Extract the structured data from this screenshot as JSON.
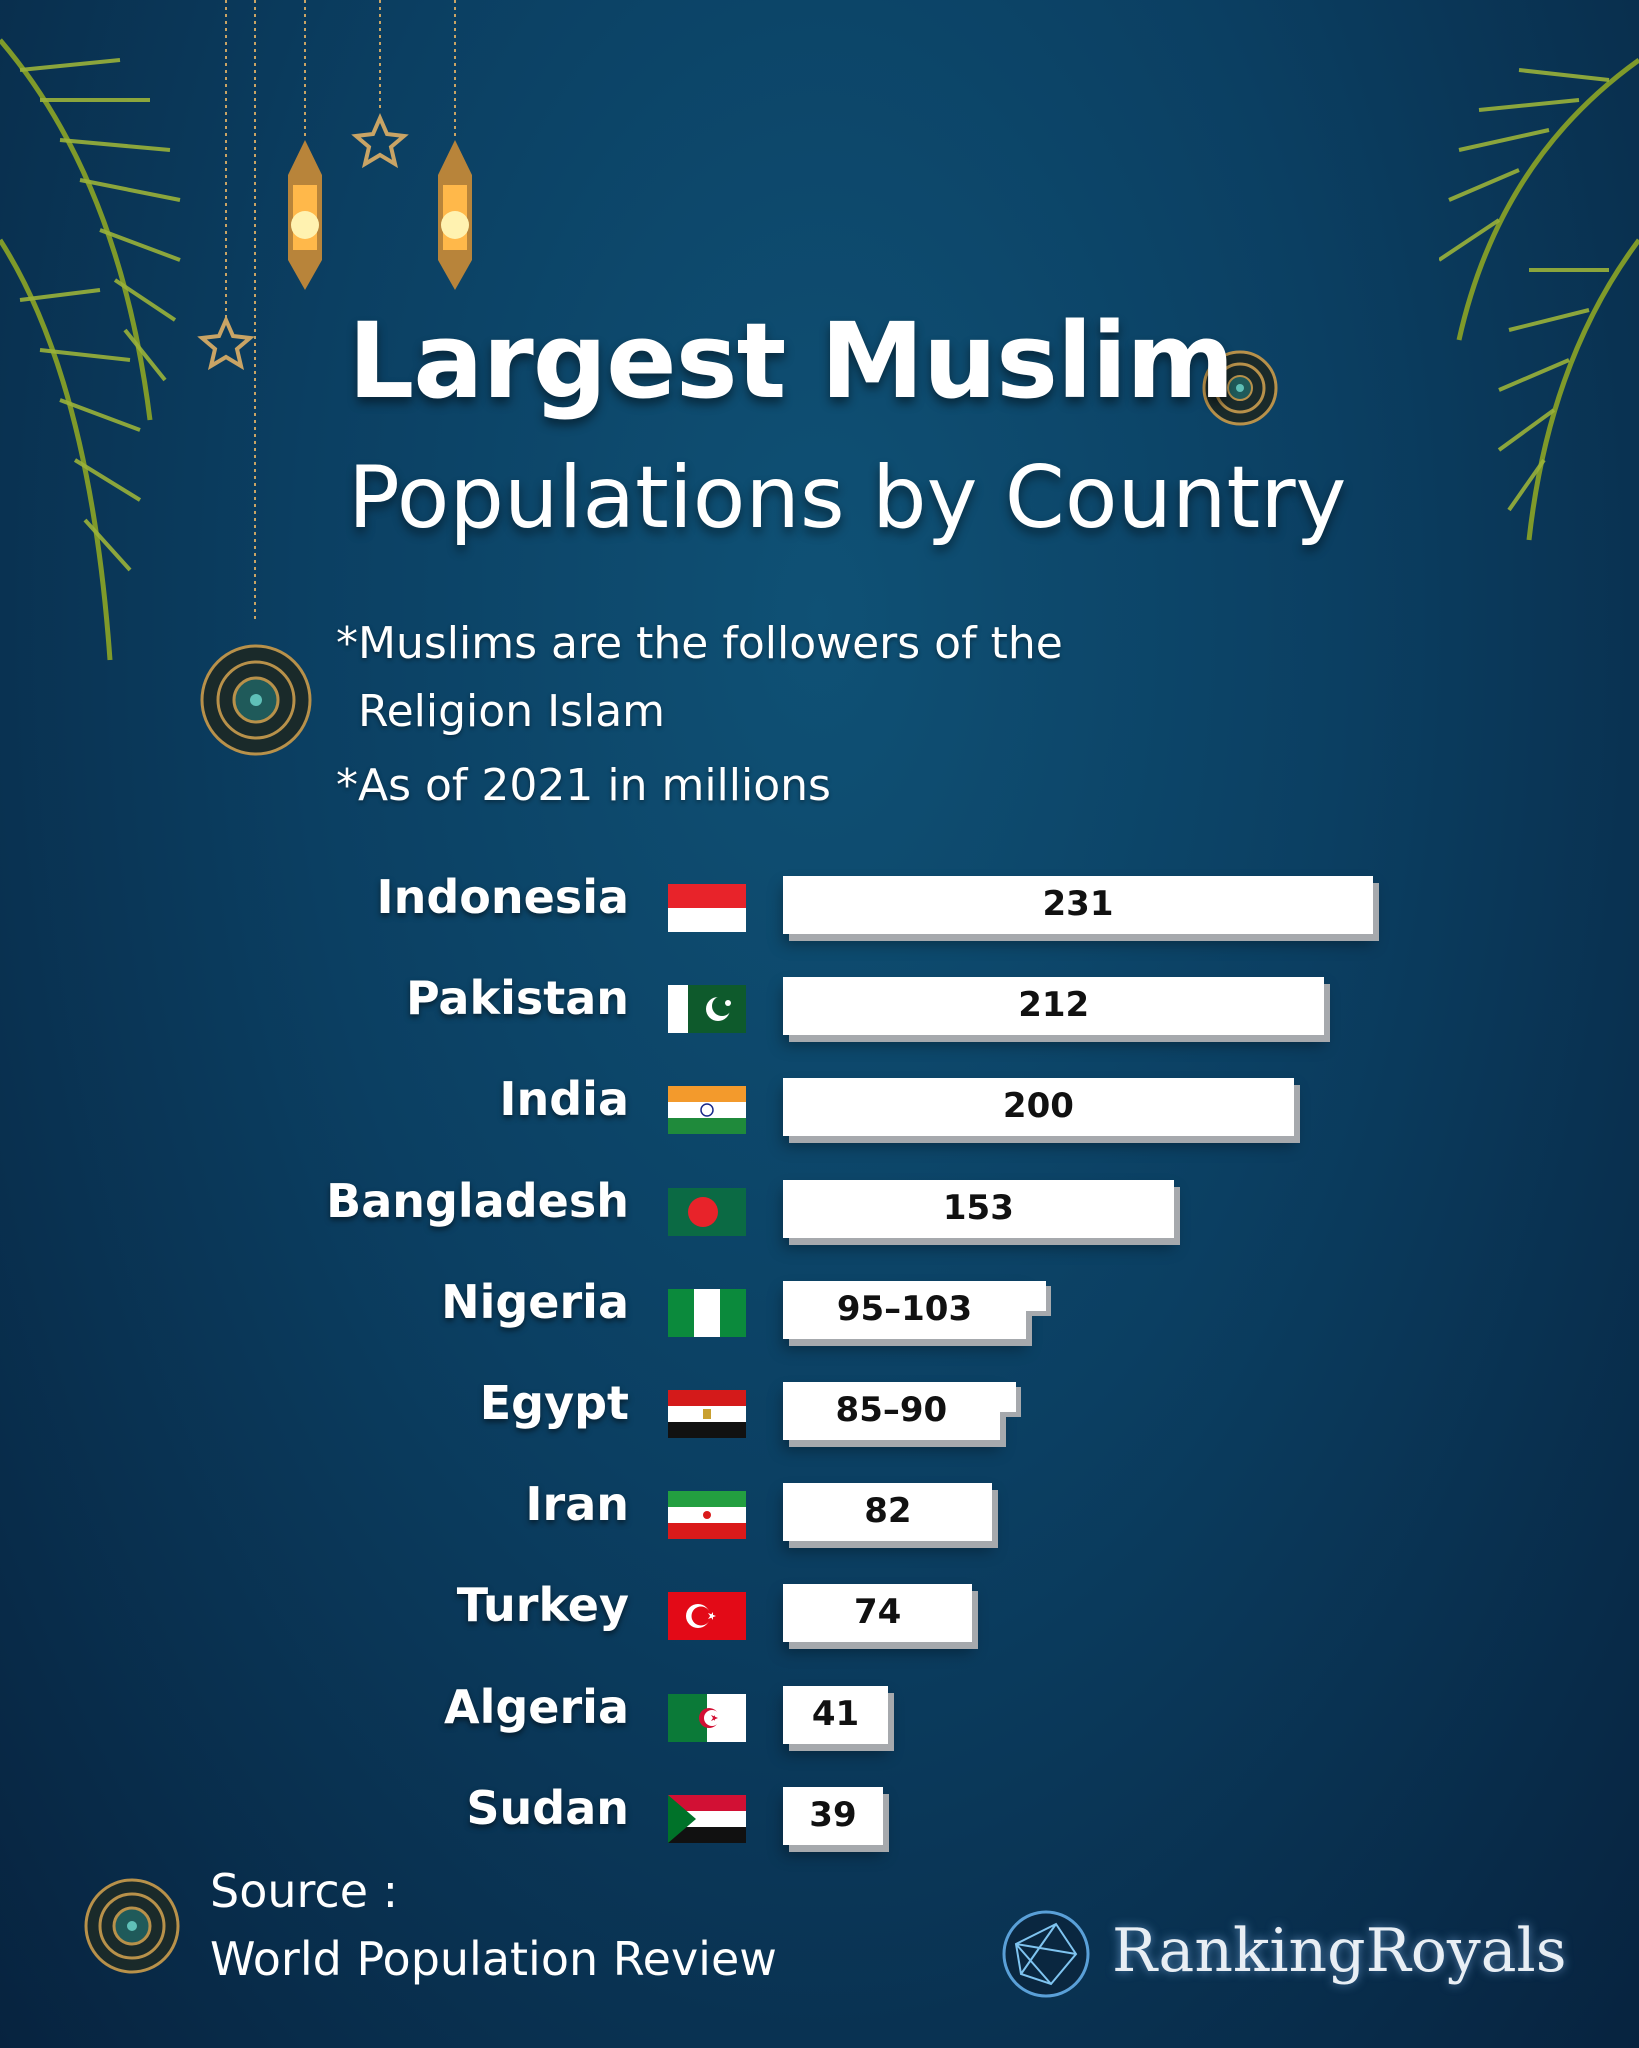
{
  "title_line1": "Largest Muslim",
  "title_line2": "Populations by Country",
  "note_line1": "*Muslims are the followers of the",
  "note_line1b": "Religion Islam",
  "note_line2": "*As of 2021 in millions",
  "source_label": "Source :",
  "source_name": "World Population Review",
  "brand": "RankingRoyals",
  "chart_data": {
    "type": "bar",
    "orientation": "horizontal",
    "title": "Largest Muslim Populations by Country",
    "categories": [
      "Indonesia",
      "Pakistan",
      "India",
      "Bangladesh",
      "Nigeria",
      "Egypt",
      "Iran",
      "Turkey",
      "Algeria",
      "Sudan"
    ],
    "values": [
      231,
      212,
      200,
      153,
      99,
      87.5,
      82,
      74,
      41,
      39
    ],
    "value_labels": [
      "231",
      "212",
      "200",
      "153",
      "95–103",
      "85–90",
      "82",
      "74",
      "41",
      "39"
    ],
    "ranges": [
      null,
      null,
      null,
      null,
      [
        95,
        103
      ],
      [
        85,
        90
      ],
      null,
      null,
      null,
      null
    ],
    "flags": [
      "indonesia-flag",
      "pakistan-flag",
      "india-flag",
      "bangladesh-flag",
      "nigeria-flag",
      "egypt-flag",
      "iran-flag",
      "turkey-flag",
      "algeria-flag",
      "sudan-flag"
    ],
    "xlim": [
      0,
      231
    ],
    "grid": false,
    "bar_color": "#ffffff",
    "bar_shadow_color": "#a6a9ad"
  }
}
